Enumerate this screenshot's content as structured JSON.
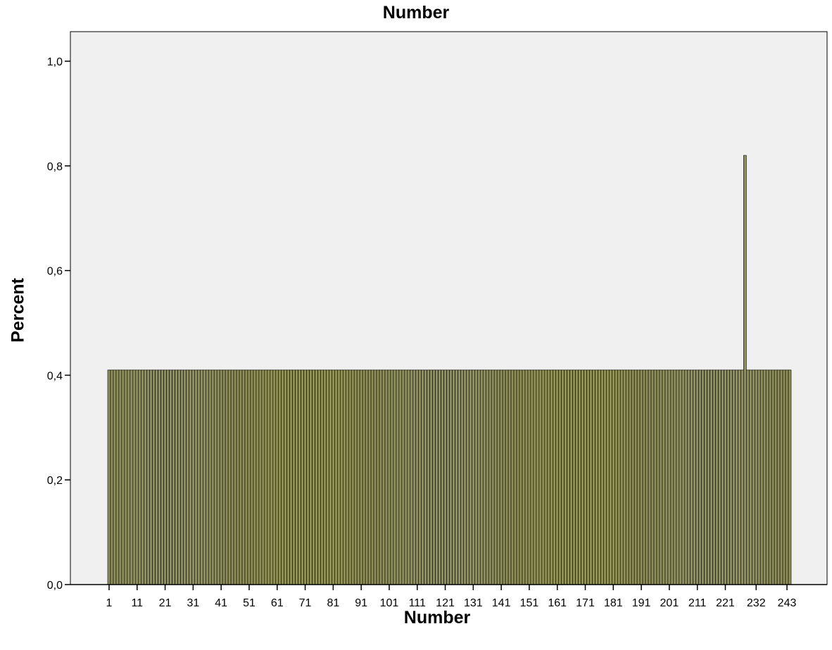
{
  "chart_data": {
    "type": "bar",
    "title": "Number",
    "xlabel": "Number",
    "ylabel": "Percent",
    "ylim": [
      0,
      1.0
    ],
    "yticks": [
      "0,0",
      "0,2",
      "0,4",
      "0,6",
      "0,8",
      "1,0"
    ],
    "ytick_values": [
      0,
      0.2,
      0.4,
      0.6,
      0.8,
      1.0
    ],
    "xtick_labels": [
      "1",
      "11",
      "21",
      "31",
      "41",
      "51",
      "61",
      "71",
      "81",
      "91",
      "101",
      "111",
      "121",
      "131",
      "141",
      "151",
      "161",
      "171",
      "181",
      "191",
      "201",
      "211",
      "221",
      "232",
      "243"
    ],
    "categories_count": 244,
    "categories_first": 1,
    "values_default": 0.41,
    "values_exceptions": [
      {
        "category": 228,
        "value": 0.82
      }
    ],
    "grid": false,
    "legend": "none",
    "colors": {
      "bar_fill": "#8f8f58",
      "bar_edge": "#000000",
      "plot_bg": "#f0f0f0"
    }
  }
}
